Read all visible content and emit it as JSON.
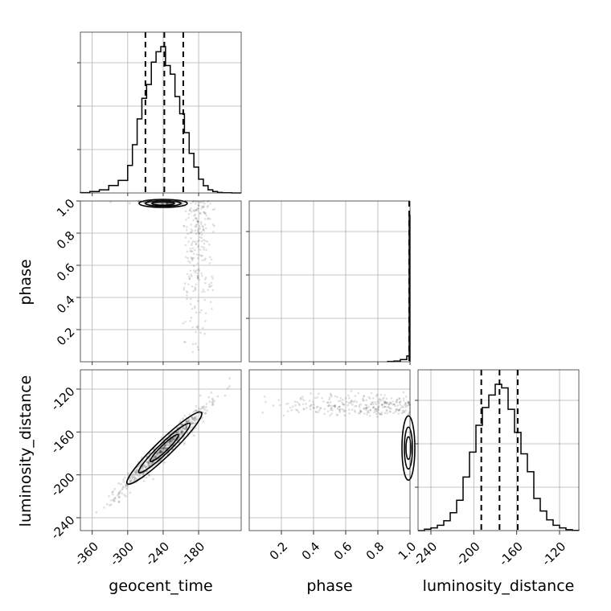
{
  "chart_data": {
    "type": "corner",
    "parameters": [
      "geocent_time",
      "phase",
      "luminosity_distance"
    ],
    "labels": {
      "geocent_time": "geocent_time",
      "phase": "phase",
      "luminosity_distance": "luminosity_distance"
    },
    "ranges": {
      "geocent_time": [
        -380,
        -108
      ],
      "phase": [
        0.0,
        1.0
      ],
      "luminosity_distance": [
        -252,
        -102
      ]
    },
    "ticks": {
      "geocent_time": [
        "-360",
        "-300",
        "-240",
        "-180"
      ],
      "phase_x": [
        "0.2",
        "0.4",
        "0.6",
        "0.8",
        "1.0"
      ],
      "phase_y": [
        "0.2",
        "0.4",
        "0.6",
        "0.8",
        "1.0"
      ],
      "luminosity_distance": [
        "-240",
        "-200",
        "-160",
        "-120"
      ]
    },
    "tick_values": {
      "geocent_time": [
        -360,
        -300,
        -240,
        -180
      ],
      "phase": [
        0.2,
        0.4,
        0.6,
        0.8,
        1.0
      ],
      "luminosity_distance": [
        -240,
        -200,
        -160,
        -120
      ]
    },
    "histograms": {
      "geocent_time": {
        "bin_edges": [
          -380,
          -364,
          -348,
          -332,
          -316,
          -300,
          -292,
          -284,
          -276,
          -268,
          -260,
          -252,
          -244,
          -236,
          -228,
          -220,
          -212,
          -204,
          -196,
          -188,
          -180,
          -172,
          -164,
          -156,
          -148,
          -140,
          -124,
          -108
        ],
        "counts": [
          0.2,
          0.8,
          1.8,
          4.3,
          7.3,
          16,
          28,
          43,
          55,
          63,
          76,
          82,
          85,
          74,
          69,
          56,
          46,
          35,
          23,
          15,
          8,
          4.2,
          1.8,
          0.8,
          0.3,
          0.1,
          0
        ],
        "quantiles": [
          -270,
          -238,
          -206
        ]
      },
      "phase": {
        "bin_edges": [
          0.86,
          0.9,
          0.94,
          0.98,
          0.995,
          1.0
        ],
        "counts": [
          0.2,
          0.5,
          1.5,
          4,
          100
        ],
        "quantiles": [
          0.998,
          0.999,
          1.0
        ]
      },
      "luminosity_distance": {
        "bin_edges": [
          -252,
          -246,
          -240,
          -234,
          -228,
          -222,
          -216,
          -210,
          -204,
          -198,
          -192,
          -186,
          -180,
          -174,
          -168,
          -162,
          -156,
          -150,
          -144,
          -138,
          -132,
          -126,
          -120,
          -114,
          -108,
          -102
        ],
        "counts": [
          0,
          0.8,
          1.5,
          3,
          5.5,
          10,
          17,
          30,
          44,
          59,
          69,
          76,
          82,
          80,
          68,
          55,
          43,
          33,
          18,
          11,
          6,
          3,
          1.5,
          0.5,
          0.1
        ],
        "quantiles": [
          -193,
          -176,
          -159
        ]
      }
    },
    "joint": {
      "geocent_time_vs_luminosity_distance": {
        "slope": 0.53,
        "intercept": -49,
        "center": [
          -238,
          -175
        ],
        "axis_spread_time": 32,
        "perp_spread": 3.5
      },
      "geocent_time_vs_phase": {
        "center_time": -240,
        "phase_mode": 1.0,
        "tail_time_range": [
          -200,
          -160
        ]
      },
      "phase_vs_luminosity_distance": {
        "phase_mode": 1.0,
        "ld_center": -175,
        "trend": "scatter at low phase near ld -120 to -140"
      }
    },
    "grid": true
  }
}
